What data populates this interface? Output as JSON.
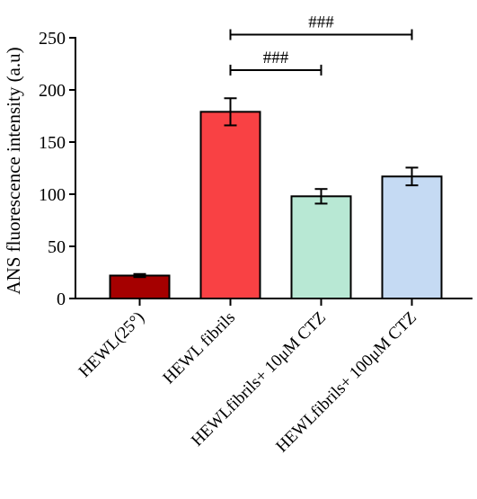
{
  "chart_data": {
    "type": "bar",
    "title": "",
    "xlabel": "",
    "ylabel": "ANS fluorescence intensity (a.u)",
    "ylim": [
      0,
      250
    ],
    "yticks": [
      0,
      50,
      100,
      150,
      200,
      250
    ],
    "categories": [
      "HEWL(25°)",
      "HEWL fibrils",
      "HEWLfibrils+ 10μM CTZ",
      "HEWLfibrils+ 100μM CTZ"
    ],
    "values": [
      22,
      179,
      98,
      117
    ],
    "errors": [
      1.5,
      13,
      7,
      8.5
    ],
    "colors": [
      "#a50000",
      "#f94144",
      "#b8e8d4",
      "#c5daf3"
    ],
    "significance": [
      {
        "from": 1,
        "to": 2,
        "label": "###",
        "y": 219
      },
      {
        "from": 1,
        "to": 3,
        "label": "###",
        "y": 253
      }
    ]
  }
}
